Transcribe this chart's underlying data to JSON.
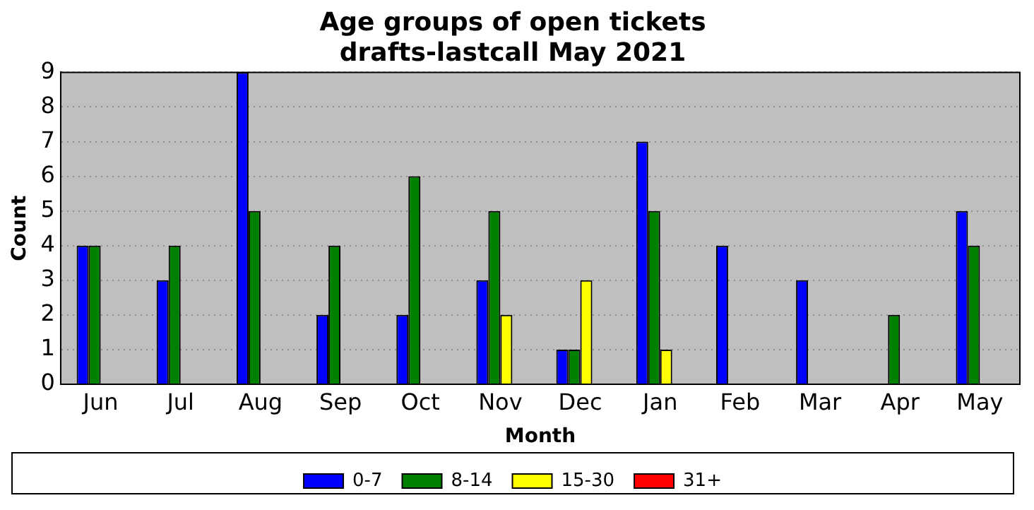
{
  "chart_data": {
    "type": "bar",
    "title": "Age groups of open tickets\ndrafts-lastcall May 2021",
    "xlabel": "Month",
    "ylabel": "Count",
    "categories": [
      "Jun",
      "Jul",
      "Aug",
      "Sep",
      "Oct",
      "Nov",
      "Dec",
      "Jan",
      "Feb",
      "Mar",
      "Apr",
      "May"
    ],
    "series": [
      {
        "name": "0-7",
        "color": "#0000ff",
        "values": [
          4,
          3,
          9,
          2,
          2,
          3,
          1,
          7,
          4,
          3,
          0,
          5
        ]
      },
      {
        "name": "8-14",
        "color": "#008000",
        "values": [
          4,
          4,
          5,
          4,
          6,
          5,
          1,
          5,
          0,
          0,
          2,
          4
        ]
      },
      {
        "name": "15-30",
        "color": "#ffff00",
        "values": [
          0,
          0,
          0,
          0,
          0,
          2,
          3,
          1,
          0,
          0,
          0,
          0
        ]
      },
      {
        "name": "31+",
        "color": "#ff0000",
        "values": [
          0,
          0,
          0,
          0,
          0,
          0,
          0,
          0,
          0,
          0,
          0,
          0
        ]
      }
    ],
    "ylim": [
      0,
      9
    ],
    "yticks": [
      0,
      1,
      2,
      3,
      4,
      5,
      6,
      7,
      8,
      9
    ],
    "grid": "y",
    "legend": "bottom"
  }
}
